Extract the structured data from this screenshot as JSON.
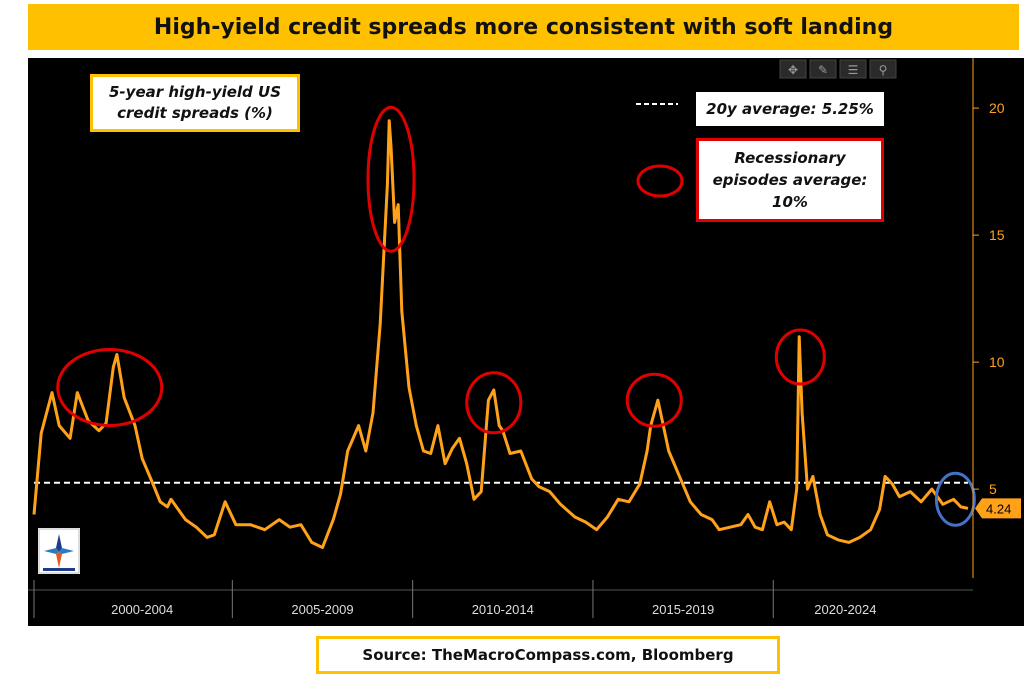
{
  "header": {
    "title": "High-yield credit spreads more consistent with soft landing"
  },
  "source": {
    "text": "Source: TheMacroCompass.com, Bloomberg"
  },
  "annotations": {
    "series_label": "5-year high-yield US credit spreads (%)",
    "average_label": "20y average: 5.25%",
    "recession_label": "Recessionary episodes average: 10%",
    "last_value": "4.24"
  },
  "toolbar": {
    "icons": [
      "crosshair-icon",
      "pencil-icon",
      "list-icon",
      "zoom-icon"
    ]
  },
  "colors": {
    "line": "#ffa21a",
    "background": "#000000",
    "axis": "#ffa21a",
    "average_line": "#ffffff",
    "recession_circle": "#e00000",
    "current_circle": "#4472c4",
    "title_bg": "#ffc000"
  },
  "chart_data": {
    "type": "line",
    "title": "High-yield credit spreads more consistent with soft landing",
    "xlabel": "",
    "ylabel": "",
    "xlim": [
      1999.0,
      2024.9
    ],
    "ylim": [
      1.5,
      21.5
    ],
    "y_ticks": [
      5,
      10,
      15,
      20
    ],
    "x_period_labels": [
      {
        "label": "2000-2004",
        "center": 2002.0
      },
      {
        "label": "2005-2009",
        "center": 2007.0
      },
      {
        "label": "2010-2014",
        "center": 2012.0
      },
      {
        "label": "2015-2019",
        "center": 2017.0
      },
      {
        "label": "2020-2024",
        "center": 2021.5
      }
    ],
    "x_separators": [
      2004.5,
      2009.5,
      2014.5,
      2019.5
    ],
    "average_line": 5.25,
    "last_value": 4.24,
    "series": [
      {
        "x": [
          1999.0,
          1999.2,
          1999.5,
          1999.7,
          2000.0,
          2000.2,
          2000.5,
          2000.8,
          2001.0,
          2001.2,
          2001.3,
          2001.5,
          2001.8,
          2002.0,
          2002.3,
          2002.5,
          2002.7,
          2002.8,
          2003.0,
          2003.2,
          2003.5,
          2003.8,
          2004.0,
          2004.3,
          2004.6,
          2005.0,
          2005.4,
          2005.8,
          2006.1,
          2006.4,
          2006.7,
          2007.0,
          2007.3,
          2007.5,
          2007.7,
          2008.0,
          2008.2,
          2008.4,
          2008.6,
          2008.8,
          2008.85,
          2008.9,
          2009.0,
          2009.1,
          2009.2,
          2009.3,
          2009.4,
          2009.6,
          2009.8,
          2010.0,
          2010.2,
          2010.4,
          2010.6,
          2010.8,
          2011.0,
          2011.2,
          2011.4,
          2011.6,
          2011.75,
          2011.9,
          2012.0,
          2012.2,
          2012.5,
          2012.8,
          2013.0,
          2013.3,
          2013.6,
          2014.0,
          2014.3,
          2014.6,
          2014.9,
          2015.2,
          2015.5,
          2015.8,
          2016.0,
          2016.1,
          2016.3,
          2016.6,
          2016.9,
          2017.2,
          2017.5,
          2017.8,
          2018.0,
          2018.3,
          2018.6,
          2018.8,
          2019.0,
          2019.2,
          2019.4,
          2019.6,
          2019.8,
          2020.0,
          2020.15,
          2020.22,
          2020.3,
          2020.45,
          2020.6,
          2020.8,
          2021.0,
          2021.3,
          2021.6,
          2021.9,
          2022.2,
          2022.45,
          2022.6,
          2022.8,
          2023.0,
          2023.3,
          2023.6,
          2023.9,
          2024.2,
          2024.5,
          2024.7,
          2024.9
        ],
        "y": [
          4.0,
          7.2,
          8.8,
          7.5,
          7.0,
          8.8,
          7.7,
          7.3,
          7.6,
          9.8,
          10.3,
          8.6,
          7.5,
          6.2,
          5.2,
          4.5,
          4.3,
          4.6,
          4.2,
          3.8,
          3.5,
          3.1,
          3.2,
          4.5,
          3.6,
          3.6,
          3.4,
          3.8,
          3.5,
          3.6,
          2.9,
          2.7,
          3.8,
          4.8,
          6.5,
          7.5,
          6.5,
          8.0,
          11.5,
          17.0,
          19.5,
          18.5,
          15.5,
          16.2,
          12.0,
          10.5,
          9.0,
          7.5,
          6.5,
          6.4,
          7.5,
          6.0,
          6.6,
          7.0,
          6.0,
          4.6,
          4.9,
          8.5,
          8.9,
          7.5,
          7.3,
          6.4,
          6.5,
          5.4,
          5.1,
          4.9,
          4.4,
          3.9,
          3.7,
          3.4,
          3.9,
          4.6,
          4.5,
          5.2,
          6.5,
          7.5,
          8.5,
          6.5,
          5.5,
          4.5,
          4.0,
          3.8,
          3.4,
          3.5,
          3.6,
          4.0,
          3.5,
          3.4,
          4.5,
          3.6,
          3.7,
          3.4,
          5.0,
          11.0,
          8.0,
          5.0,
          5.5,
          4.0,
          3.2,
          3.0,
          2.9,
          3.1,
          3.4,
          4.2,
          5.5,
          5.2,
          4.7,
          4.9,
          4.5,
          5.0,
          4.4,
          4.6,
          4.3,
          4.24
        ]
      }
    ]
  }
}
